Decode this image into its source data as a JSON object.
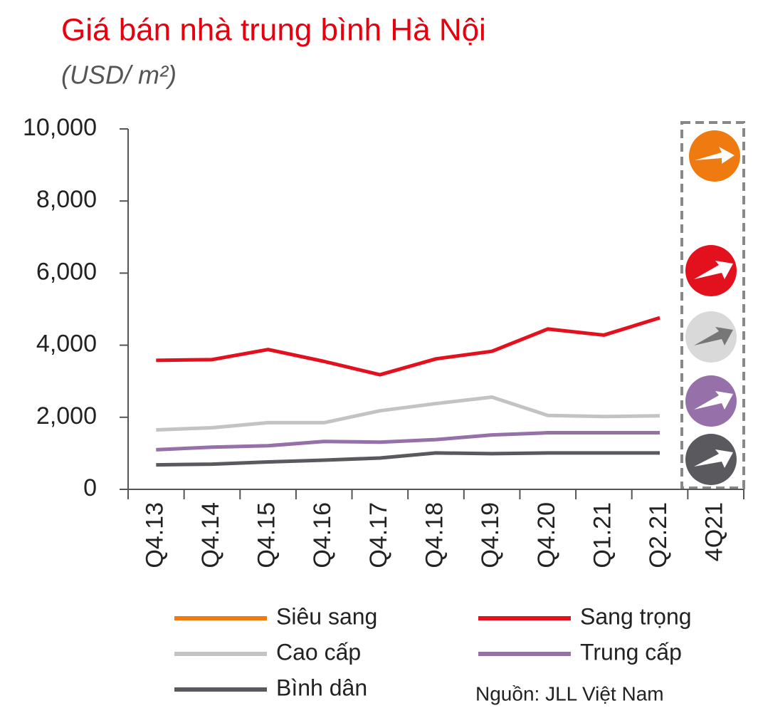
{
  "chart_data": {
    "type": "line",
    "title": "Giá bán nhà trung bình Hà Nội",
    "subtitle": "(USD/ m²)",
    "source": "Nguồn: JLL Việt Nam",
    "categories": [
      "Q4.13",
      "Q4.14",
      "Q4.15",
      "Q4.16",
      "Q4.17",
      "Q4.18",
      "Q4.19",
      "Q4.20",
      "Q1.21",
      "Q2.21",
      "4Q21"
    ],
    "ylim": [
      0,
      10000
    ],
    "yticks": [
      0,
      {
        "value": 2000,
        "label": "2,000"
      },
      {
        "value": 4000,
        "label": "4,000"
      },
      {
        "value": 6000,
        "label": "6,000"
      },
      {
        "value": 8000,
        "label": "8,000"
      },
      {
        "value": 10000,
        "label": "10,000"
      }
    ],
    "series": [
      {
        "name": "Siêu sang",
        "color": "#ee7a10",
        "values": [
          null,
          null,
          null,
          null,
          null,
          null,
          null,
          null,
          null,
          null,
          null
        ]
      },
      {
        "name": "Sang trọng",
        "color": "#e3101e",
        "values": [
          3580,
          3600,
          3880,
          3550,
          3180,
          3620,
          3830,
          4450,
          4280,
          4760,
          null
        ]
      },
      {
        "name": "Cao cấp",
        "color": "#c3c3c3",
        "values": [
          1650,
          1710,
          1850,
          1850,
          2180,
          2380,
          2560,
          2050,
          2020,
          2040,
          null
        ]
      },
      {
        "name": "Trung cấp",
        "color": "#9670a8",
        "values": [
          1100,
          1170,
          1210,
          1330,
          1310,
          1380,
          1510,
          1570,
          1570,
          1570,
          null
        ]
      },
      {
        "name": "Bình dân",
        "color": "#5a5a5e",
        "values": [
          680,
          700,
          760,
          810,
          870,
          1010,
          990,
          1010,
          1010,
          1010,
          null
        ]
      }
    ]
  }
}
